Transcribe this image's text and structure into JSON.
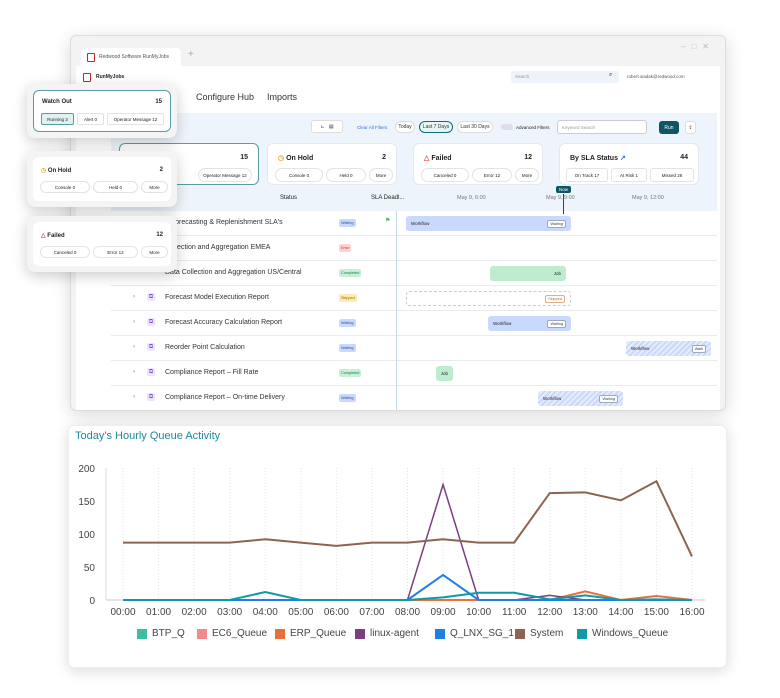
{
  "browser": {
    "tab_title": "Redwood Software RunMyJobs",
    "new_tab": "+"
  },
  "app": {
    "name": "RunMyJobs",
    "search_placeholder": "Search",
    "user": "robert.siadak@redwood.com"
  },
  "tabs": [
    {
      "label": "Configure Hub"
    },
    {
      "label": "Imports"
    }
  ],
  "toolbar": {
    "clear_filters": "Clear All Filters",
    "today": "Today",
    "last7": "Last 7 Days",
    "last30": "Last 30 Days",
    "advanced_filters": "Advanced Filters",
    "keyword_placeholder": "Keyword Search",
    "run": "Run"
  },
  "cards": {
    "watch_out": {
      "title": "Watch Out",
      "count": "15",
      "chips": [
        "Running 3",
        "Alert 0",
        "Operator Message 12"
      ]
    },
    "on_hold": {
      "title": "On Hold",
      "count": "2",
      "chips": [
        "Console 0",
        "Held 0",
        "More"
      ]
    },
    "failed": {
      "title": "Failed",
      "count": "12",
      "chips": [
        "Canceled 0",
        "Error 12",
        "More"
      ]
    },
    "sla": {
      "title": "By SLA Status",
      "count": "44",
      "chips": [
        "On Track 17",
        "At Risk 1",
        "Missed 26"
      ]
    }
  },
  "table": {
    "headers": {
      "status": "Status",
      "sla": "SLA Deadl...",
      "t1": "May 9, 6:00",
      "t2": "May 9, 9:00",
      "t3": "May 9, 12:00",
      "now": "Now"
    },
    "rows": [
      {
        "name": "d Forecasting & Replenishment SLA's",
        "status": "Waiting",
        "bar": "Workflow",
        "bar_status": "Waiting"
      },
      {
        "name": "Collection and Aggregation EMEA",
        "status": "Error"
      },
      {
        "name": "Data Collection and Aggregation US/Central",
        "status": "Completed",
        "bar": "Job"
      },
      {
        "name": "Forecast Model Execution Report",
        "status": "Skipped",
        "bar_status": "Skipped"
      },
      {
        "name": "Forecast Accuracy Calculation Report",
        "status": "Waiting",
        "bar": "Workflow",
        "bar_status": "Waiting"
      },
      {
        "name": "Reorder Point Calculation",
        "status": "Waiting",
        "bar": "Workflow",
        "bar_status": "Waiti"
      },
      {
        "name": "Compliance Report – Fill Rate",
        "status": "Completed",
        "bar": "Job"
      },
      {
        "name": "Compliance Report – On-time Delivery",
        "status": "Waiting",
        "bar": "Workflow",
        "bar_status": "Waiting"
      }
    ]
  },
  "chart_data": {
    "type": "line",
    "title": "Today's Hourly Queue Activity",
    "x": [
      "00:00",
      "01:00",
      "02:00",
      "03:00",
      "04:00",
      "05:00",
      "06:00",
      "07:00",
      "08:00",
      "09:00",
      "10:00",
      "11:00",
      "12:00",
      "13:00",
      "14:00",
      "15:00",
      "16:00"
    ],
    "ylim": [
      0,
      200
    ],
    "yticks": [
      0,
      50,
      100,
      150,
      200
    ],
    "grid": "vertical dotted",
    "legend": "bottom",
    "series": [
      {
        "name": "BTP_Q",
        "color": "#3dbf9f",
        "values": [
          0,
          0,
          0,
          0,
          0,
          0,
          0,
          0,
          0,
          0,
          0,
          0,
          0,
          0,
          0,
          0,
          0
        ]
      },
      {
        "name": "EC6_Queue",
        "color": "#f08a8f",
        "values": [
          0,
          0,
          0,
          0,
          0,
          0,
          0,
          0,
          0,
          0,
          0,
          0,
          0,
          0,
          0,
          0,
          0
        ]
      },
      {
        "name": "ERP_Queue",
        "color": "#e8703a",
        "values": [
          0,
          0,
          0,
          0,
          0,
          0,
          0,
          0,
          0,
          0,
          0,
          0,
          0,
          13,
          0,
          6,
          0
        ]
      },
      {
        "name": "linux-agent",
        "color": "#7b3f7f",
        "values": [
          0,
          0,
          0,
          0,
          0,
          0,
          0,
          0,
          0,
          175,
          0,
          0,
          7,
          0,
          0,
          0,
          0
        ]
      },
      {
        "name": "Q_LNX_SG_1",
        "color": "#1e7fe6",
        "values": [
          0,
          0,
          0,
          0,
          0,
          0,
          0,
          0,
          0,
          38,
          0,
          0,
          0,
          0,
          0,
          0,
          0
        ]
      },
      {
        "name": "System",
        "color": "#8c6452",
        "values": [
          87,
          87,
          87,
          87,
          92,
          87,
          82,
          87,
          87,
          92,
          87,
          87,
          162,
          163,
          151,
          180,
          66
        ]
      },
      {
        "name": "Windows_Queue",
        "color": "#0e9aa7",
        "values": [
          0,
          0,
          0,
          0,
          12,
          0,
          0,
          0,
          0,
          4,
          11,
          11,
          1,
          7,
          0,
          1,
          0
        ]
      }
    ]
  }
}
